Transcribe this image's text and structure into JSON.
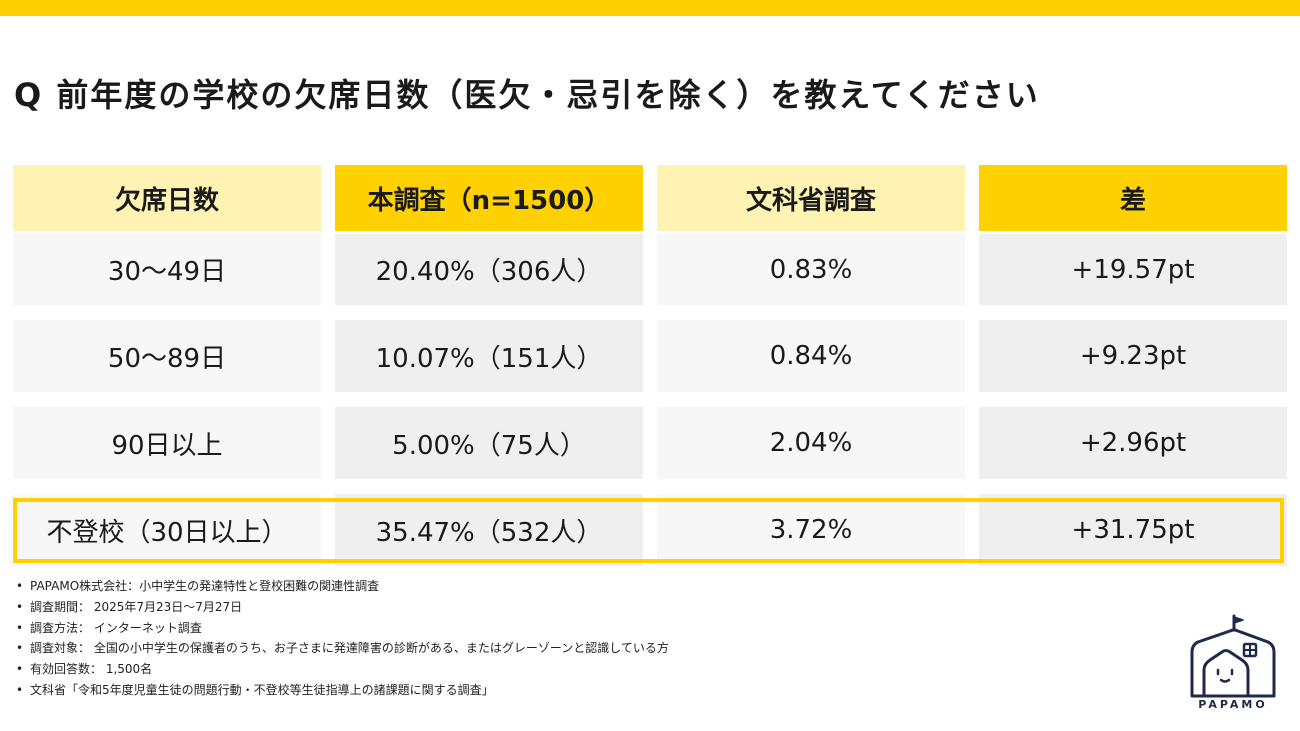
{
  "title": "Q 前年度の学校の欠席日数（医欠・忌引を除く）を教えてください",
  "table": {
    "headers": [
      "欠席日数",
      "本調査（n=1500）",
      "文科省調査",
      "差"
    ],
    "rows": [
      [
        "30〜49日",
        "20.40%（306人）",
        "0.83%",
        "+19.57pt"
      ],
      [
        "50〜89日",
        "10.07%（151人）",
        "0.84%",
        "+9.23pt"
      ],
      [
        "90日以上",
        "5.00%（75人）",
        "2.04%",
        "+2.96pt"
      ],
      [
        "不登校（30日以上）",
        "35.47%（532人）",
        "3.72%",
        "+31.75pt"
      ]
    ],
    "highlight_row": 3
  },
  "notes": [
    "PAPAMO株式会社：小中学生の発達特性と登校困難の関連性調査",
    "調査期間： 2025年7月23日〜7月27日",
    "調査方法： インターネット調査",
    "調査対象： 全国の小中学生の保護者のうち、お子さまに発達障害の診断がある、またはグレーゾーンと認識している方",
    "有効回答数： 1,500名",
    "文科省「令和5年度児童生徒の問題行動・不登校等生徒指導上の諸課題に関する調査」"
  ],
  "logo": {
    "text": "PAPAMO",
    "icon": "house-with-face-icon"
  },
  "colors": {
    "accent": "#ffd100",
    "accent_light": "#fff3b3",
    "cell_light": "#f7f7f7",
    "cell_dark": "#efefef",
    "logo": "#1e2a4a"
  }
}
